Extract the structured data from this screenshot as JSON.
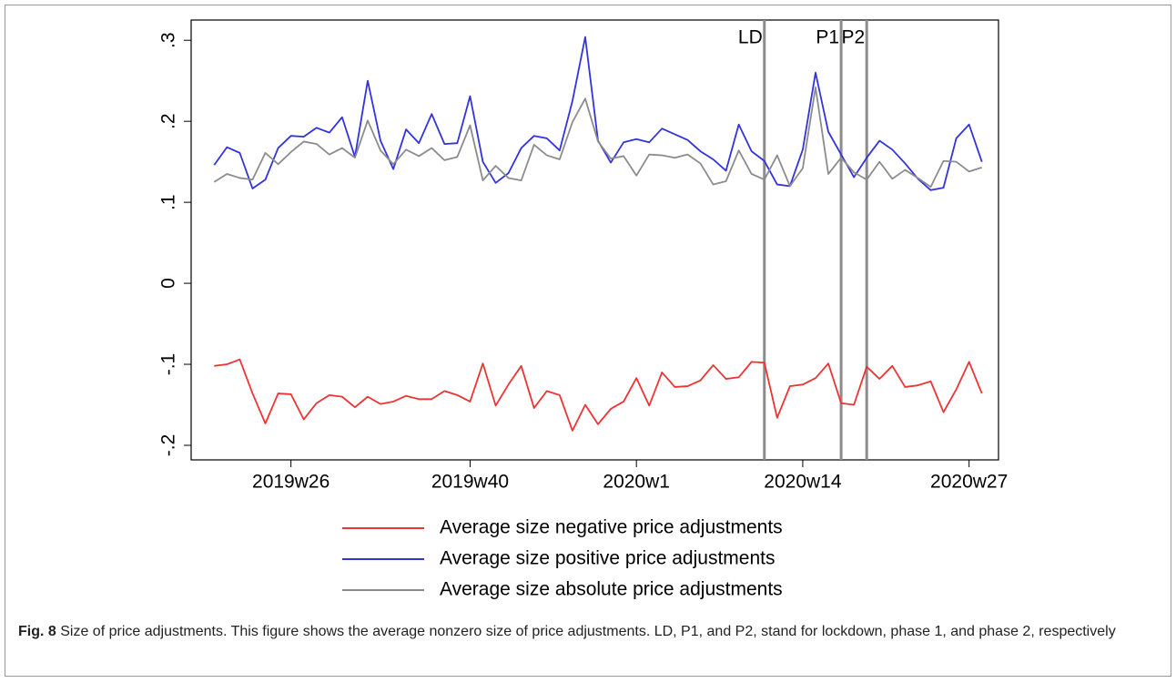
{
  "chart_data": {
    "type": "line",
    "x": [
      3087,
      3088,
      3089,
      3090,
      3091,
      3092,
      3093,
      3094,
      3095,
      3096,
      3097,
      3098,
      3099,
      3100,
      3101,
      3102,
      3103,
      3104,
      3105,
      3106,
      3107,
      3108,
      3109,
      3110,
      3111,
      3112,
      3113,
      3114,
      3115,
      3116,
      3117,
      3118,
      3119,
      3120,
      3121,
      3122,
      3123,
      3124,
      3125,
      3126,
      3127,
      3128,
      3129,
      3130,
      3131,
      3132,
      3133,
      3134,
      3135,
      3136,
      3137,
      3138,
      3139,
      3140,
      3141,
      3142,
      3143,
      3144,
      3145,
      3146,
      3147
    ],
    "series": [
      {
        "name": "Average size negative price adjustments",
        "color": "#ee3333",
        "values": [
          -0.102,
          -0.1,
          -0.094,
          -0.136,
          -0.173,
          -0.136,
          -0.137,
          -0.168,
          -0.148,
          -0.138,
          -0.14,
          -0.153,
          -0.14,
          -0.149,
          -0.146,
          -0.139,
          -0.143,
          -0.143,
          -0.133,
          -0.138,
          -0.146,
          -0.099,
          -0.151,
          -0.125,
          -0.102,
          -0.154,
          -0.133,
          -0.138,
          -0.182,
          -0.15,
          -0.174,
          -0.155,
          -0.146,
          -0.117,
          -0.151,
          -0.11,
          -0.128,
          -0.127,
          -0.12,
          -0.101,
          -0.118,
          -0.116,
          -0.097,
          -0.098,
          -0.166,
          -0.127,
          -0.125,
          -0.117,
          -0.099,
          -0.148,
          -0.15,
          -0.103,
          -0.118,
          -0.102,
          -0.128,
          -0.126,
          -0.121,
          -0.159,
          -0.131,
          -0.097,
          -0.136
        ]
      },
      {
        "name": "Average size positive price adjustments",
        "color": "#3333dd",
        "values": [
          0.146,
          0.168,
          0.161,
          0.117,
          0.128,
          0.167,
          0.182,
          0.181,
          0.192,
          0.186,
          0.205,
          0.156,
          0.25,
          0.176,
          0.141,
          0.19,
          0.173,
          0.209,
          0.172,
          0.173,
          0.231,
          0.15,
          0.124,
          0.136,
          0.167,
          0.182,
          0.179,
          0.164,
          0.225,
          0.304,
          0.176,
          0.149,
          0.174,
          0.178,
          0.174,
          0.191,
          0.184,
          0.177,
          0.163,
          0.153,
          0.139,
          0.196,
          0.163,
          0.151,
          0.122,
          0.12,
          0.165,
          0.26,
          0.187,
          0.159,
          0.131,
          0.155,
          0.176,
          0.165,
          0.148,
          0.129,
          0.115,
          0.118,
          0.179,
          0.196,
          0.15
        ]
      },
      {
        "name": "Average size absolute price adjustments",
        "color": "#8c8c8c",
        "values": [
          0.125,
          0.135,
          0.13,
          0.128,
          0.161,
          0.147,
          0.162,
          0.175,
          0.172,
          0.159,
          0.167,
          0.155,
          0.201,
          0.164,
          0.147,
          0.165,
          0.157,
          0.167,
          0.152,
          0.156,
          0.195,
          0.127,
          0.145,
          0.13,
          0.127,
          0.171,
          0.158,
          0.153,
          0.199,
          0.228,
          0.175,
          0.154,
          0.157,
          0.133,
          0.159,
          0.158,
          0.155,
          0.159,
          0.148,
          0.122,
          0.126,
          0.164,
          0.135,
          0.128,
          0.158,
          0.12,
          0.142,
          0.242,
          0.135,
          0.155,
          0.137,
          0.128,
          0.15,
          0.129,
          0.14,
          0.13,
          0.119,
          0.151,
          0.15,
          0.138,
          0.143
        ]
      }
    ],
    "xlim": [
      3085.2,
      3148.3
    ],
    "xticks": [
      {
        "value": 3093,
        "label": "2019w26"
      },
      {
        "value": 3107,
        "label": "2019w40"
      },
      {
        "value": 3120,
        "label": "2020w1"
      },
      {
        "value": 3133,
        "label": "2020w14"
      },
      {
        "value": 3146,
        "label": "2020w27"
      }
    ],
    "ylim": [
      -0.218,
      0.325
    ],
    "yticks": [
      {
        "value": -0.2,
        "label": "-.2"
      },
      {
        "value": -0.1,
        "label": "-.1"
      },
      0,
      {
        "value": 0.1,
        "label": ".1"
      },
      {
        "value": 0.2,
        "label": ".2"
      },
      {
        "value": 0.3,
        "label": ".3"
      }
    ],
    "vlines": [
      {
        "x": 3130,
        "label": "LD"
      },
      {
        "x": 3136,
        "label": "P1"
      },
      {
        "x": 3138,
        "label": "P2"
      }
    ],
    "vline_color": "#8c8c8c",
    "grid": false,
    "caption_label": "Fig. 8",
    "caption": "Size of price adjustments. This figure shows the average nonzero size of price adjustments. LD, P1, and P2, stand for lockdown, phase 1, and phase 2, respectively"
  }
}
